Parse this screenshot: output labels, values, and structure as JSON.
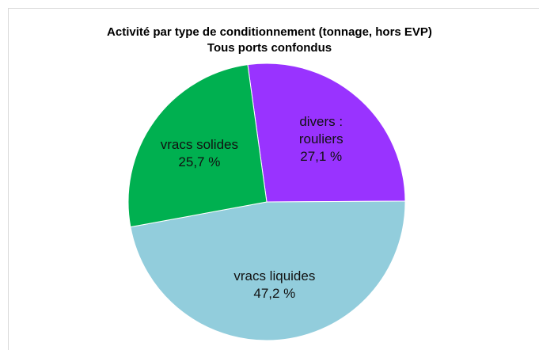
{
  "chart_data": {
    "type": "pie",
    "title": "Activité par type de conditionnement (tonnage, hors EVP)",
    "subtitle": "Tous ports confondus",
    "categories": [
      "divers : rouliers",
      "vracs liquides",
      "vracs solides"
    ],
    "values": [
      27.1,
      47.2,
      25.7
    ],
    "value_labels": [
      "27,1 %",
      "47,2 %",
      "25,7 %"
    ],
    "colors": [
      "#9933ff",
      "#92cddc",
      "#00b050"
    ]
  }
}
